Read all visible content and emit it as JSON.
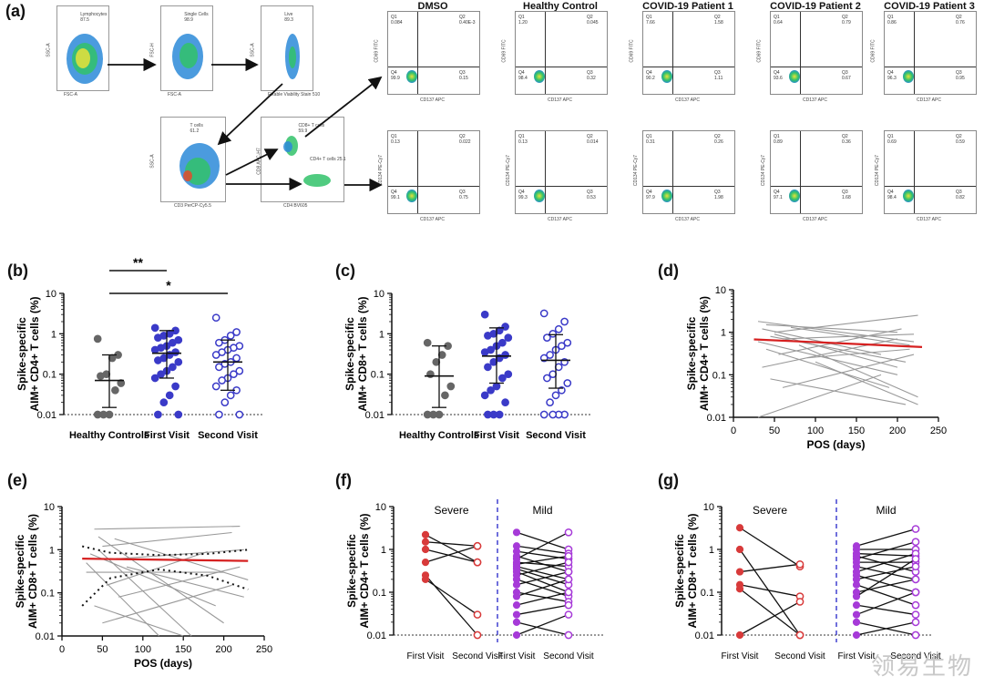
{
  "panel_letters": {
    "a": "(a)",
    "b": "(b)",
    "c": "(c)",
    "d": "(d)",
    "e": "(e)",
    "f": "(f)",
    "g": "(g)"
  },
  "facs": {
    "gates": [
      "Lymphocytes",
      "Single Cells",
      "Live",
      "T cells",
      "CD8+ T cells",
      "CD4+ T cells"
    ],
    "gate_values": [
      "87.5",
      "98.9",
      "89.3",
      "61.2",
      "59.9",
      "25.1"
    ],
    "axes": {
      "fsc": "FSC-A",
      "ssc": "SSC-A",
      "fsch": "FSC-H",
      "fsc_a2": "FSC-A",
      "live_x": "Fixable Viability Stain 510",
      "cd3": "CD3 PerCP-Cy5.5",
      "cd8": "CD8 APC-H7",
      "cd4": "CD4 BV605",
      "ssc2": "SSC-A"
    },
    "columns": [
      "DMSO",
      "Healthy Control",
      "COVID-19 Patient 1",
      "COVID-19 Patient 2",
      "COVID-19 Patient 3"
    ],
    "top_y": "CD69 FITC",
    "bottom_y": "CD134 PE-Cy7",
    "x": "CD137 APC",
    "top_q": [
      [
        "Q1",
        "0.084",
        "Q2",
        "0.40E-3",
        "Q4",
        "99.9",
        "Q3",
        "0.15"
      ],
      [
        "Q1",
        "1.20",
        "Q2",
        "0.045",
        "Q4",
        "98.4",
        "Q3",
        "0.32"
      ],
      [
        "Q1",
        "7.66",
        "Q2",
        "1.58",
        "Q4",
        "90.2",
        "Q3",
        "1.11"
      ],
      [
        "Q1",
        "0.64",
        "Q2",
        "0.79",
        "Q4",
        "93.6",
        "Q3",
        "0.67"
      ],
      [
        "Q1",
        "0.86",
        "Q2",
        "0.76",
        "Q4",
        "96.3",
        "Q3",
        "0.95"
      ]
    ],
    "bottom_q": [
      [
        "Q1",
        "0.13",
        "Q2",
        "0.022",
        "Q4",
        "99.1",
        "Q3",
        "0.75"
      ],
      [
        "Q1",
        "0.13",
        "Q2",
        "0.014",
        "Q4",
        "99.3",
        "Q3",
        "0.53"
      ],
      [
        "Q1",
        "0.31",
        "Q2",
        "0.26",
        "Q4",
        "97.9",
        "Q3",
        "1.98"
      ],
      [
        "Q1",
        "0.89",
        "Q2",
        "0.36",
        "Q4",
        "97.1",
        "Q3",
        "1.68"
      ],
      [
        "Q1",
        "0.69",
        "Q2",
        "0.59",
        "Q4",
        "98.4",
        "Q3",
        "0.82"
      ]
    ]
  },
  "ticks": {
    "log": [
      "10",
      "1",
      "0.1",
      "0.01"
    ],
    "pos": [
      "0",
      "50",
      "100",
      "150",
      "200",
      "250"
    ]
  },
  "chart_data": [
    {
      "id": "b",
      "type": "scatter",
      "ylabel": "Spike-specific AIM+ CD4+ T cells (%)",
      "ylabel_line1": "Spike-specific",
      "ylabel_line2": "AIM+ CD4+ T cells (%)",
      "categories": [
        "Healthy Controls",
        "First Visit",
        "Second Visit"
      ],
      "yscale": "log",
      "ylim": [
        0.01,
        10
      ],
      "lod": 0.01,
      "significance": [
        {
          "from": "Healthy Controls",
          "to": "First Visit",
          "label": "**"
        },
        {
          "from": "Healthy Controls",
          "to": "Second Visit",
          "label": "*"
        }
      ],
      "series": [
        {
          "name": "Healthy Controls",
          "values": [
            0.75,
            0.3,
            0.25,
            0.1,
            0.09,
            0.06,
            0.04,
            0.01,
            0.01,
            0.01
          ],
          "median": 0.07,
          "iqr": [
            0.015,
            0.3
          ],
          "marker": "filled",
          "color": "#666666"
        },
        {
          "name": "First Visit",
          "values": [
            1.4,
            1.2,
            1.0,
            0.9,
            0.8,
            0.7,
            0.6,
            0.5,
            0.45,
            0.4,
            0.35,
            0.3,
            0.25,
            0.22,
            0.2,
            0.15,
            0.12,
            0.1,
            0.08,
            0.05,
            0.03,
            0.02,
            0.01,
            0.01
          ],
          "median": 0.33,
          "iqr": [
            0.08,
            1.2
          ],
          "marker": "filled",
          "color": "#3a3ac8"
        },
        {
          "name": "Second Visit",
          "values": [
            2.5,
            1.1,
            0.9,
            0.7,
            0.6,
            0.5,
            0.45,
            0.4,
            0.35,
            0.3,
            0.25,
            0.2,
            0.18,
            0.15,
            0.12,
            0.1,
            0.08,
            0.07,
            0.05,
            0.04,
            0.03,
            0.02,
            0.01,
            0.01
          ],
          "median": 0.2,
          "iqr": [
            0.04,
            0.7
          ],
          "marker": "open",
          "color": "#3a3ac8"
        }
      ]
    },
    {
      "id": "c",
      "type": "scatter",
      "ylabel": "Spike-specific AIM+ CD8+ T cells (%)",
      "ylabel_line1": "Spike-specific",
      "ylabel_line2": "AIM+ CD8+ T cells (%)",
      "categories": [
        "Healthy Controls",
        "First Visit",
        "Second Visit"
      ],
      "yscale": "log",
      "ylim": [
        0.01,
        10
      ],
      "lod": 0.01,
      "series": [
        {
          "name": "Healthy Controls",
          "values": [
            0.6,
            0.5,
            0.3,
            0.2,
            0.1,
            0.05,
            0.03,
            0.01,
            0.01,
            0.01
          ],
          "median": 0.09,
          "iqr": [
            0.015,
            0.5
          ],
          "marker": "filled",
          "color": "#666666"
        },
        {
          "name": "First Visit",
          "values": [
            3.0,
            1.5,
            1.2,
            1.0,
            0.9,
            0.8,
            0.6,
            0.5,
            0.4,
            0.35,
            0.3,
            0.25,
            0.2,
            0.15,
            0.1,
            0.08,
            0.05,
            0.04,
            0.03,
            0.02,
            0.01,
            0.01,
            0.01
          ],
          "median": 0.28,
          "iqr": [
            0.06,
            1.4
          ],
          "marker": "filled",
          "color": "#3a3ac8"
        },
        {
          "name": "Second Visit",
          "values": [
            3.2,
            2.0,
            1.3,
            1.0,
            0.8,
            0.6,
            0.5,
            0.4,
            0.3,
            0.25,
            0.2,
            0.15,
            0.1,
            0.08,
            0.06,
            0.04,
            0.03,
            0.02,
            0.01,
            0.01,
            0.01,
            0.01
          ],
          "median": 0.22,
          "iqr": [
            0.045,
            0.95
          ],
          "marker": "open",
          "color": "#3a3ac8"
        }
      ]
    },
    {
      "id": "d",
      "type": "line",
      "xlabel": "POS (days)",
      "ylabel": "Spike-specific AIM+ CD4+ T cells (%)",
      "ylabel_line1": "Spike-specific",
      "ylabel_line2": "AIM+ CD4+ T cells (%)",
      "xlim": [
        0,
        250
      ],
      "yscale": "log",
      "ylim": [
        0.01,
        10
      ],
      "trend": {
        "x": [
          25,
          230
        ],
        "y": [
          0.68,
          0.45
        ],
        "color": "#d62020"
      },
      "lines": [
        [
          [
            30,
            1.8
          ],
          [
            220,
            0.6
          ]
        ],
        [
          [
            40,
            1.5
          ],
          [
            200,
            1.0
          ]
        ],
        [
          [
            35,
            1.2
          ],
          [
            180,
            0.3
          ]
        ],
        [
          [
            50,
            1.0
          ],
          [
            225,
            2.5
          ]
        ],
        [
          [
            45,
            0.8
          ],
          [
            210,
            0.2
          ]
        ],
        [
          [
            60,
            0.7
          ],
          [
            220,
            0.9
          ]
        ],
        [
          [
            30,
            0.6
          ],
          [
            200,
            0.1
          ]
        ],
        [
          [
            70,
            1.3
          ],
          [
            215,
            0.5
          ]
        ],
        [
          [
            40,
            0.4
          ],
          [
            190,
            0.05
          ]
        ],
        [
          [
            55,
            0.3
          ],
          [
            205,
            1.2
          ]
        ],
        [
          [
            80,
            0.5
          ],
          [
            225,
            0.03
          ]
        ],
        [
          [
            35,
            0.15
          ],
          [
            200,
            0.7
          ]
        ],
        [
          [
            90,
            0.25
          ],
          [
            215,
            0.4
          ]
        ],
        [
          [
            30,
            0.01
          ],
          [
            180,
            0.1
          ]
        ],
        [
          [
            60,
            0.05
          ],
          [
            220,
            0.3
          ]
        ],
        [
          [
            45,
            0.08
          ],
          [
            210,
            0.02
          ]
        ],
        [
          [
            100,
            0.2
          ],
          [
            225,
            0.02
          ]
        ],
        [
          [
            50,
            0.9
          ],
          [
            200,
            0.15
          ]
        ]
      ]
    },
    {
      "id": "e",
      "type": "line",
      "xlabel": "POS (days)",
      "ylabel": "Spike-specific AIM+ CD8+ T cells (%)",
      "ylabel_line1": "Spike-specific",
      "ylabel_line2": "AIM+ CD8+ T cells (%)",
      "xlim": [
        0,
        250
      ],
      "yscale": "log",
      "ylim": [
        0.01,
        10
      ],
      "trend": {
        "x": [
          25,
          230
        ],
        "y": [
          0.62,
          0.55
        ],
        "color": "#d62020"
      },
      "ci_upper": [
        [
          25,
          1.2
        ],
        [
          60,
          0.85
        ],
        [
          120,
          0.75
        ],
        [
          180,
          0.8
        ],
        [
          230,
          1.0
        ]
      ],
      "ci_lower": [
        [
          25,
          0.05
        ],
        [
          60,
          0.22
        ],
        [
          120,
          0.35
        ],
        [
          180,
          0.25
        ],
        [
          230,
          0.12
        ]
      ],
      "lines": [
        [
          [
            40,
            3.0
          ],
          [
            220,
            3.5
          ]
        ],
        [
          [
            45,
            2.0
          ],
          [
            200,
            0.02
          ]
        ],
        [
          [
            50,
            1.2
          ],
          [
            210,
            2.5
          ]
        ],
        [
          [
            35,
            0.8
          ],
          [
            190,
            0.05
          ]
        ],
        [
          [
            60,
            0.6
          ],
          [
            225,
            1.0
          ]
        ],
        [
          [
            30,
            0.3
          ],
          [
            200,
            0.3
          ]
        ],
        [
          [
            55,
            0.15
          ],
          [
            180,
            0.9
          ]
        ],
        [
          [
            70,
            0.08
          ],
          [
            220,
            0.4
          ]
        ],
        [
          [
            40,
            0.05
          ],
          [
            150,
            0.01
          ]
        ],
        [
          [
            50,
            0.02
          ],
          [
            210,
            0.15
          ]
        ],
        [
          [
            65,
            1.8
          ],
          [
            230,
            0.2
          ]
        ],
        [
          [
            30,
            0.5
          ],
          [
            120,
            0.01
          ]
        ],
        [
          [
            80,
            0.4
          ],
          [
            225,
            0.08
          ]
        ],
        [
          [
            45,
            1.0
          ],
          [
            160,
            0.01
          ]
        ]
      ]
    },
    {
      "id": "f",
      "type": "paired",
      "ylabel": "Spike-specific AIM+ CD4+ T cells (%)",
      "ylabel_line1": "Spike-specific",
      "ylabel_line2": "AIM+ CD4+ T cells (%)",
      "groups": [
        "Severe",
        "Mild"
      ],
      "categories": [
        "First Visit",
        "Second Visit",
        "First Visit",
        "Second Visit"
      ],
      "yscale": "log",
      "ylim": [
        0.01,
        10
      ],
      "lod": 0.01,
      "severe": [
        [
          2.2,
          0.5
        ],
        [
          1.5,
          1.2
        ],
        [
          1.0,
          0.5
        ],
        [
          0.5,
          1.2
        ],
        [
          0.25,
          0.01
        ],
        [
          0.2,
          0.03
        ]
      ],
      "mild": [
        [
          2.5,
          1.0
        ],
        [
          1.2,
          0.8
        ],
        [
          0.9,
          0.6
        ],
        [
          0.7,
          0.3
        ],
        [
          0.6,
          2.5
        ],
        [
          0.5,
          0.4
        ],
        [
          0.45,
          0.7
        ],
        [
          0.4,
          0.2
        ],
        [
          0.35,
          0.15
        ],
        [
          0.3,
          0.1
        ],
        [
          0.25,
          0.5
        ],
        [
          0.2,
          0.08
        ],
        [
          0.15,
          0.3
        ],
        [
          0.1,
          0.06
        ],
        [
          0.08,
          0.2
        ],
        [
          0.05,
          0.1
        ],
        [
          0.03,
          0.05
        ],
        [
          0.02,
          0.01
        ],
        [
          0.01,
          0.03
        ]
      ]
    },
    {
      "id": "g",
      "type": "paired",
      "ylabel": "Spike-specific AIM+ CD8+ T cells (%)",
      "ylabel_line1": "Spike-specific",
      "ylabel_line2": "AIM+ CD8+ T cells (%)",
      "groups": [
        "Severe",
        "Mild"
      ],
      "categories": [
        "First Visit",
        "Second Visit",
        "First Visit",
        "Second Visit"
      ],
      "yscale": "log",
      "ylim": [
        0.01,
        10
      ],
      "lod": 0.01,
      "severe": [
        [
          3.2,
          0.4
        ],
        [
          1.0,
          0.01
        ],
        [
          0.3,
          0.45
        ],
        [
          0.15,
          0.08
        ],
        [
          0.12,
          0.01
        ],
        [
          0.01,
          0.06
        ]
      ],
      "mild": [
        [
          1.2,
          3.0
        ],
        [
          1.0,
          1.0
        ],
        [
          0.8,
          0.7
        ],
        [
          0.7,
          0.3
        ],
        [
          0.6,
          1.5
        ],
        [
          0.5,
          0.5
        ],
        [
          0.4,
          0.2
        ],
        [
          0.3,
          0.8
        ],
        [
          0.25,
          0.1
        ],
        [
          0.2,
          0.4
        ],
        [
          0.15,
          0.05
        ],
        [
          0.1,
          0.2
        ],
        [
          0.08,
          0.6
        ],
        [
          0.05,
          0.03
        ],
        [
          0.03,
          0.1
        ],
        [
          0.02,
          0.01
        ],
        [
          0.01,
          0.02
        ]
      ]
    }
  ],
  "watermark": "领易生物"
}
